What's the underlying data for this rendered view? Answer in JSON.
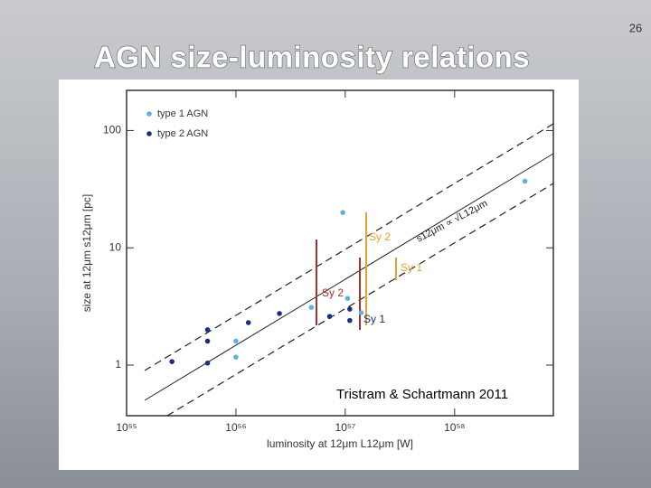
{
  "page_number": "26",
  "chart_data": {
    "type": "scatter",
    "title": "AGN size-luminosity relations",
    "x_label": "luminosity at 12μm L12μm [W]",
    "y_label": "size at 12μm s12μm [pc]",
    "annotations": [
      "Tristram & Schartmann 2011",
      "Sy 2",
      "Sy 1",
      "Sy 2",
      "Sy 1",
      "s12μm ∝ √L12μm"
    ],
    "log_x": true,
    "log_y": true,
    "xlim": [
      1e+55,
      8e+58
    ],
    "ylim": [
      0.37,
      220
    ],
    "xticks": [
      {
        "value": 1e+55,
        "label": "10⁵⁵"
      },
      {
        "value": 1e+56,
        "label": "10⁵⁶"
      },
      {
        "value": 1e+57,
        "label": "10⁵⁷"
      },
      {
        "value": 1e+58,
        "label": "10⁵⁸"
      }
    ],
    "yticks": [
      1,
      10,
      100
    ],
    "legend": "upper left",
    "series": [
      {
        "name": "type 1 AGN",
        "color": "#5fb0e6",
        "x": [
          4.4e+58,
          9.5e+56,
          1.05e+57,
          4.9e+56,
          1.4e+57,
          1e+56,
          1e+56
        ],
        "values": [
          37,
          20,
          3.7,
          3.1,
          2.8,
          1.6,
          1.17
        ]
      },
      {
        "name": "type 2 AGN",
        "color": "#1c2f7a",
        "x": [
          2.5e+56,
          1.3e+56,
          5.5e+55,
          5.5e+55,
          5.5e+55,
          2.6e+55,
          1.1e+57,
          1.1e+57,
          7.2e+56
        ],
        "values": [
          2.75,
          2.3,
          2.0,
          1.6,
          1.04,
          1.07,
          3.0,
          2.4,
          2.6
        ]
      }
    ]
  }
}
